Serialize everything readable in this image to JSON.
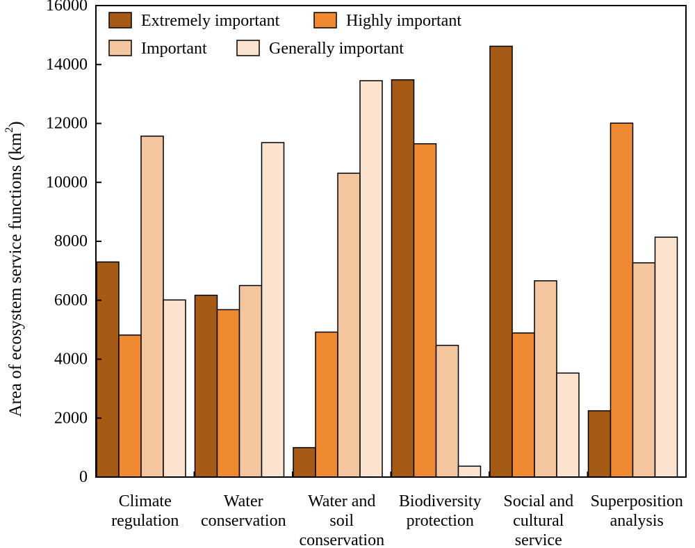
{
  "chart_data": {
    "type": "bar",
    "title": "",
    "ylabel": "Area of ecosystem service functions (km",
    "ylabel_sup": "2",
    "ylabel_close": ")",
    "xlabel": "",
    "ylim": [
      0,
      16000
    ],
    "yticks": [
      0,
      2000,
      4000,
      6000,
      8000,
      10000,
      12000,
      14000,
      16000
    ],
    "grid": false,
    "legend_position": "top-left",
    "categories": [
      [
        "Climate",
        "regulation"
      ],
      [
        "Water",
        "conservation"
      ],
      [
        "Water and",
        "soil",
        "conservation"
      ],
      [
        "Biodiversity",
        "protection"
      ],
      [
        "Social and",
        "cultural",
        "service"
      ],
      [
        "Superposition",
        "analysis"
      ]
    ],
    "series": [
      {
        "name": "Extremely important",
        "color": "#a55a16",
        "values": [
          7300,
          6170,
          1000,
          13480,
          14620,
          2250
        ]
      },
      {
        "name": "Highly important",
        "color": "#ef8a33",
        "values": [
          4820,
          5680,
          4920,
          11310,
          4890,
          12010
        ]
      },
      {
        "name": "Important",
        "color": "#f3c6a0",
        "values": [
          11570,
          6500,
          10310,
          4470,
          6660,
          7270
        ]
      },
      {
        "name": "Generally important",
        "color": "#fbe3cf",
        "values": [
          6010,
          11350,
          13450,
          370,
          3530,
          8140
        ]
      }
    ]
  }
}
